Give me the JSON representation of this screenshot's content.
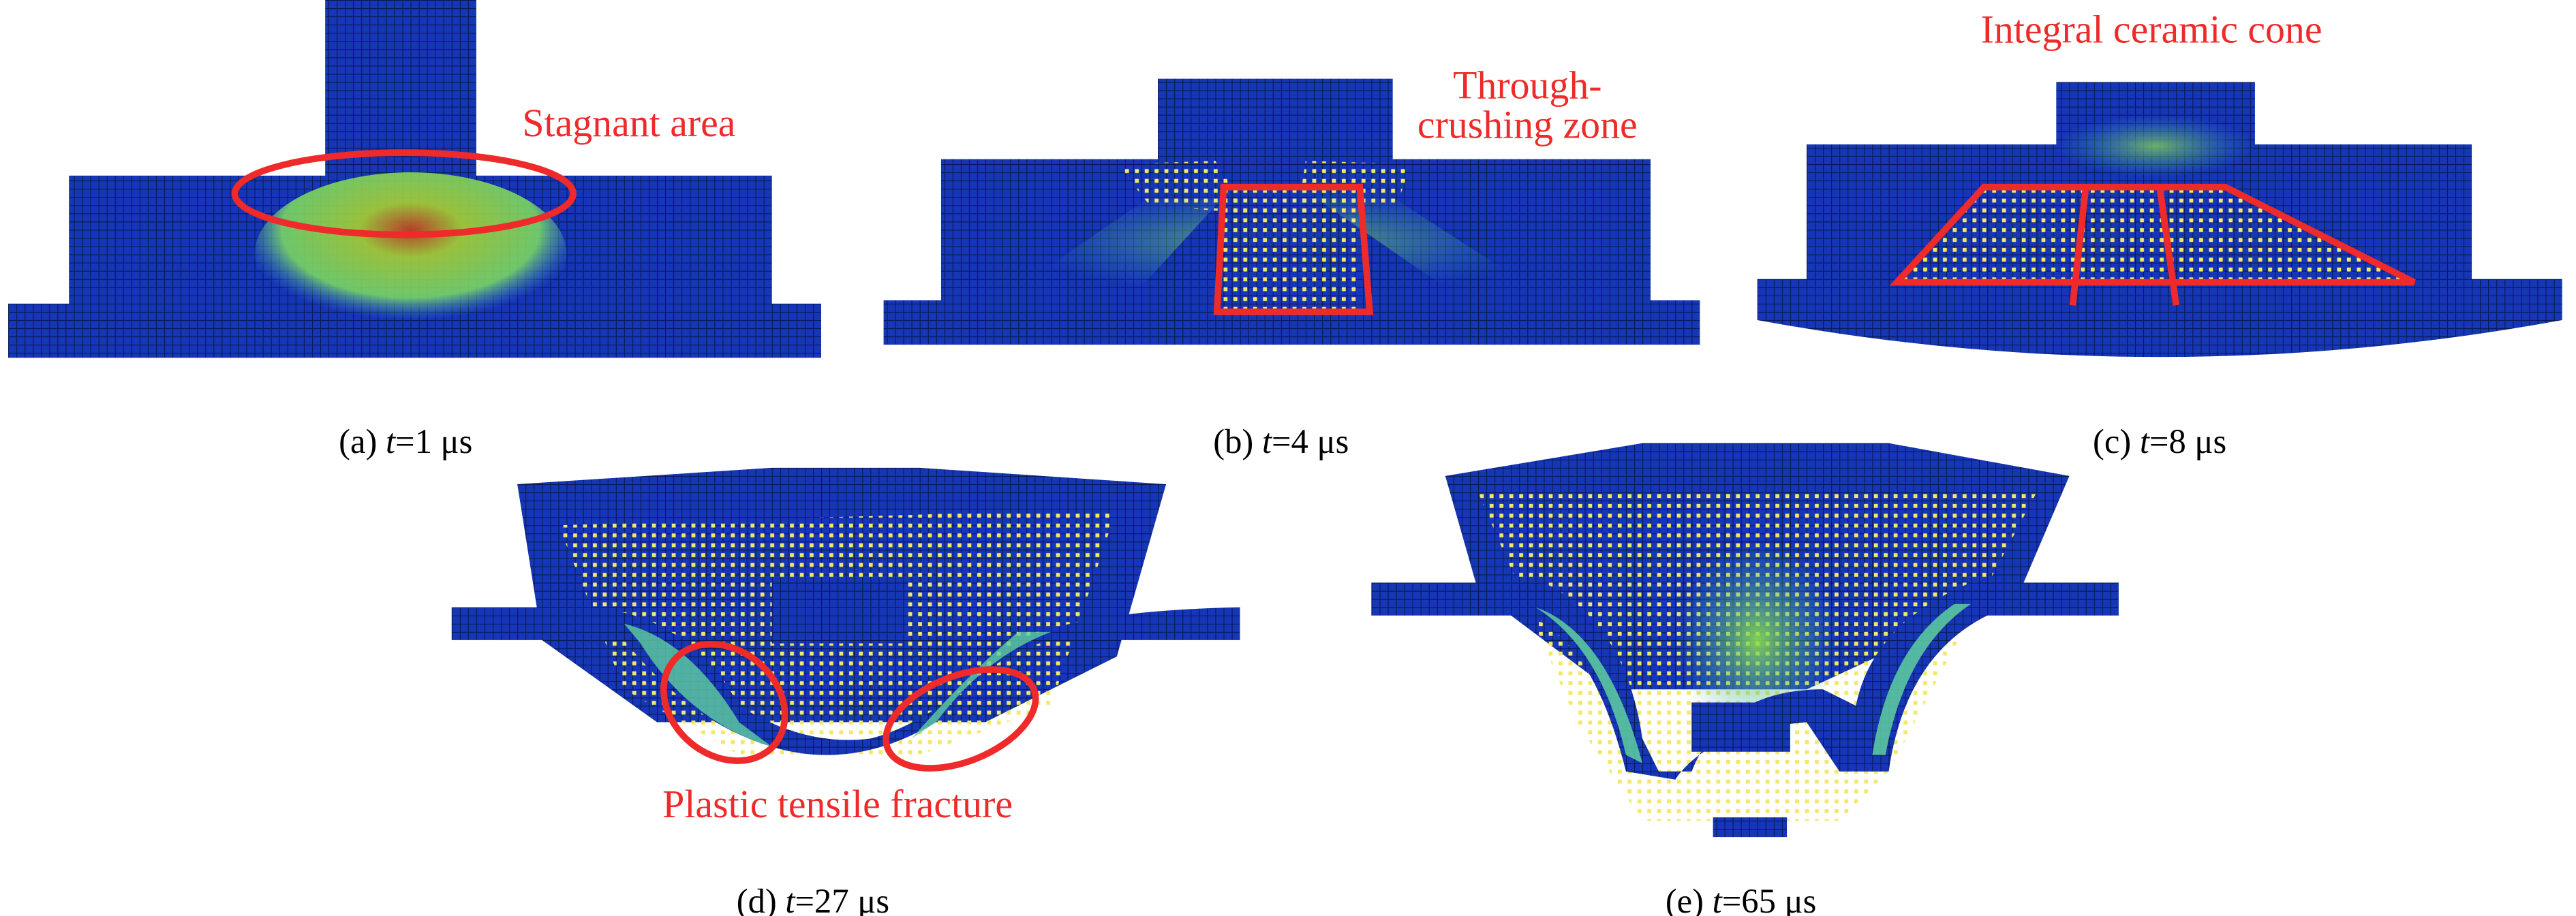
{
  "figure": {
    "panels": [
      {
        "id": "a",
        "label": "(a) ",
        "var": "t",
        "value": "=1 μs",
        "annotation": [
          "Stagnant area"
        ]
      },
      {
        "id": "b",
        "label": "(b) ",
        "var": "t",
        "value": "=4 μs",
        "annotation": [
          "Through-",
          "crushing zone"
        ]
      },
      {
        "id": "c",
        "label": "(c) ",
        "var": "t",
        "value": "=8 μs",
        "annotation": [
          "Integral ceramic cone"
        ]
      },
      {
        "id": "d",
        "label": "(d) ",
        "var": "t",
        "value": "=27 μs",
        "annotation": [
          "Plastic tensile fracture"
        ]
      },
      {
        "id": "e",
        "label": "(e) ",
        "var": "t",
        "value": "=65 μs",
        "annotation": []
      }
    ]
  },
  "colors": {
    "mesh_blue": "#1636b8",
    "mesh_line": "#0a1850",
    "stress_green": "#8ee04a",
    "stress_red": "#c8401a",
    "debris_yellow": "#f2e86a",
    "annotation_red": "#ee2a2a"
  }
}
